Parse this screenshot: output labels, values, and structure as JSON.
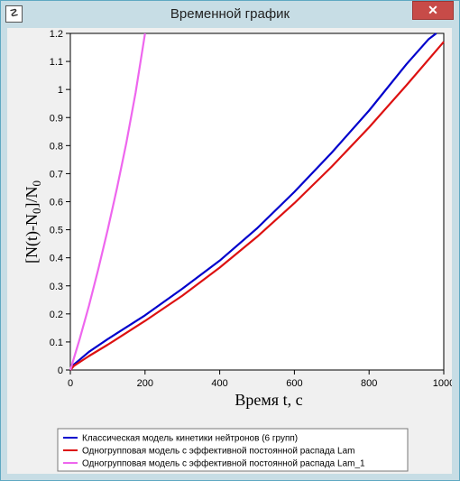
{
  "window": {
    "title": "Временной график",
    "app_icon_glyph": "☡",
    "close_glyph": "✕"
  },
  "chart_data": {
    "type": "line",
    "xlabel": "Время t, c",
    "ylabel": "[N(t)-N0]/N0",
    "ylabel_parts": {
      "pre": "[N(t)-N",
      "sub": "0",
      "mid": "]/N",
      "sub2": "0"
    },
    "xlim": [
      0,
      1000
    ],
    "ylim": [
      0,
      1.2
    ],
    "x_ticks": [
      "0",
      "200",
      "400",
      "600",
      "800",
      "1000"
    ],
    "y_ticks": [
      "0",
      "0.1",
      "0.2",
      "0.3",
      "0.4",
      "0.5",
      "0.6",
      "0.7",
      "0.8",
      "0.9",
      "1",
      "1.1",
      "1.2"
    ],
    "series": [
      {
        "name": "Классическая модель кинетики нейтронов (6 групп)",
        "color": "#0000cc",
        "x": [
          0,
          10,
          50,
          100,
          200,
          300,
          400,
          500,
          600,
          700,
          800,
          900,
          960,
          980
        ],
        "y": [
          0,
          0.02,
          0.065,
          0.11,
          0.195,
          0.29,
          0.39,
          0.505,
          0.635,
          0.775,
          0.925,
          1.09,
          1.18,
          1.2
        ]
      },
      {
        "name": "Одногрупповая модель с эффективной постоянной распада Lam",
        "color": "#dd1111",
        "x": [
          0,
          10,
          50,
          100,
          200,
          300,
          400,
          500,
          600,
          700,
          800,
          900,
          1000
        ],
        "y": [
          0,
          0.015,
          0.05,
          0.09,
          0.175,
          0.265,
          0.365,
          0.475,
          0.595,
          0.725,
          0.865,
          1.015,
          1.17
        ]
      },
      {
        "name": "Одногрупповая модель с эффективной постоянной распада Lam_1",
        "color": "#ee66ee",
        "x": [
          0,
          25,
          50,
          75,
          100,
          125,
          150,
          175,
          200
        ],
        "y": [
          0,
          0.11,
          0.23,
          0.36,
          0.5,
          0.65,
          0.81,
          0.99,
          1.2
        ]
      }
    ],
    "grid": false,
    "legend_position": "bottom"
  }
}
